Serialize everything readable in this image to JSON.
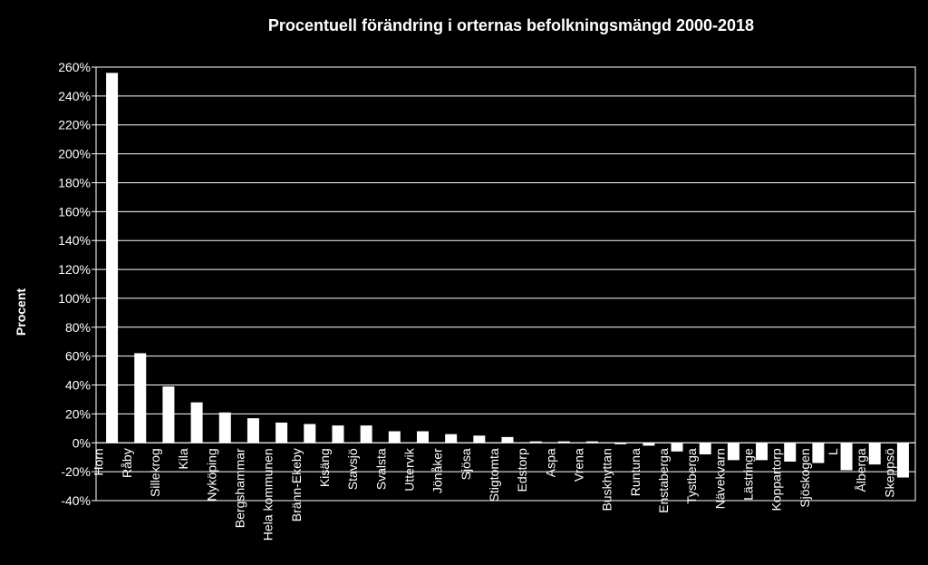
{
  "chart_data": {
    "type": "bar",
    "title": "Procentuell förändring i orternas befolkningsmängd 2000-2018",
    "xlabel": "",
    "ylabel": "Procent",
    "ylim": [
      -40,
      260
    ],
    "yticks": [
      "260%",
      "240%",
      "220%",
      "200%",
      "180%",
      "160%",
      "140%",
      "120%",
      "100%",
      "80%",
      "60%",
      "40%",
      "20%",
      "0%",
      "-20%",
      "-40%"
    ],
    "grid": true,
    "categories": [
      "Horn",
      "Råby",
      "Sillekrog",
      "Kila",
      "Nyköping",
      "Bergshammar",
      "Hela kommunen",
      "Bränn-Ekeby",
      "Kisäng",
      "Stavsjö",
      "Svalsta",
      "Uttervik",
      "Jönåker",
      "Sjösa",
      "Stigtomta",
      "Edstorp",
      "Aspa",
      "Vrena",
      "Buskhyttan",
      "Runtuna",
      "Enstaberga",
      "Tystberga",
      "Nävekvarn",
      "Lästringe",
      "Koppartorp",
      "Sjöskogen",
      "L",
      "Ålberga",
      "Skeppsö"
    ],
    "values": [
      256,
      62,
      39,
      28,
      21,
      17,
      14,
      13,
      12,
      12,
      8,
      8,
      6,
      5,
      4,
      1,
      1,
      1,
      -1,
      -2,
      -6,
      -8,
      -12,
      -12,
      -13,
      -14,
      -19,
      -15,
      -24
    ],
    "colors": {
      "background": "#000000",
      "bar": "#ffffff",
      "axis": "#ffffff",
      "grid": "#ffffff"
    }
  }
}
